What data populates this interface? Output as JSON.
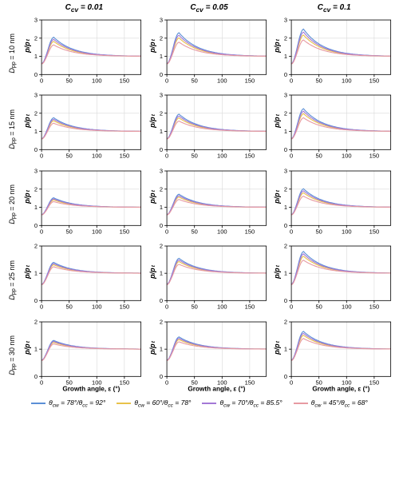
{
  "figure": {
    "background_color": "#ffffff",
    "panel_bg": "#ffffff",
    "axis_color": "#000000",
    "grid_color": "#d9d9d9",
    "tick_fontsize": 7.5,
    "col_title_fontsize": 10,
    "row_title_fontsize": 9,
    "xlabel": "Growth angle, ε (°)",
    "ylabel": "p/p₁",
    "ylabel_html": "<span style=\"font-style:italic;font-weight:bold\">p</span>/<span style=\"font-style:italic;font-weight:bold\">p</span><sub>t</sub>",
    "xlim": [
      0,
      180
    ],
    "xtick_step": 50,
    "xticks": [
      0,
      50,
      100,
      150
    ],
    "cols": [
      {
        "key": "c001",
        "title_html": "<span style=\"font-style:italic\">C</span><sub>cv</sub> = 0.01"
      },
      {
        "key": "c005",
        "title_html": "<span style=\"font-style:italic\">C</span><sub>cv</sub> = 0.05"
      },
      {
        "key": "c01",
        "title_html": "<span style=\"font-style:italic\">C</span><sub>cv</sub> = 0.1"
      }
    ],
    "rows": [
      {
        "key": "d10",
        "title_html": "<span class=\"sym\">D</span><sub>pp</sub> = 10 nm",
        "ylim": [
          0,
          3
        ],
        "ytick_step": 1,
        "amp": [
          1.05,
          1.3,
          1.5
        ]
      },
      {
        "key": "d15",
        "title_html": "<span class=\"sym\">D</span><sub>pp</sub> = 15 nm",
        "ylim": [
          0,
          3
        ],
        "ytick_step": 1,
        "amp": [
          0.75,
          0.95,
          1.25
        ]
      },
      {
        "key": "d20",
        "title_html": "<span class=\"sym\">D</span><sub>pp</sub> = 20 nm",
        "ylim": [
          0,
          3
        ],
        "ytick_step": 1,
        "amp": [
          0.52,
          0.72,
          1.02
        ]
      },
      {
        "key": "d25",
        "title_html": "<span class=\"sym\">D</span><sub>pp</sub> = 25 nm",
        "ylim": [
          0,
          2
        ],
        "ytick_step": 1,
        "amp": [
          0.4,
          0.55,
          0.8
        ]
      },
      {
        "key": "d30",
        "title_html": "<span class=\"sym\">D</span><sub>pp</sub> = 30 nm",
        "ylim": [
          0,
          2
        ],
        "ytick_step": 1,
        "amp": [
          0.32,
          0.45,
          0.65
        ]
      }
    ],
    "series": [
      {
        "key": "s1",
        "color": "#5b8fd6",
        "scale": 1.0,
        "label_html": "θ<sub>cw</sub> = 78°/θ<sub>cc</sub> = 92°"
      },
      {
        "key": "s2",
        "color": "#e8c24a",
        "scale": 0.78,
        "label_html": "θ<sub>cw</sub> = 60°/θ<sub>cc</sub> = 78°"
      },
      {
        "key": "s3",
        "color": "#a378d6",
        "scale": 0.89,
        "label_html": "θ<sub>cw</sub> = 70°/θ<sub>cc</sub> = 85.5°"
      },
      {
        "key": "s4",
        "color": "#e79aa2",
        "scale": 0.6,
        "label_html": "θ<sub>cw</sub> = 45°/θ<sub>cc</sub> = 68°"
      }
    ],
    "curve_shape": {
      "asymptote": 1.0,
      "peak_eps": 22,
      "start_value": 0.55,
      "decay_rate": 0.028,
      "line_width": 1.1
    }
  }
}
